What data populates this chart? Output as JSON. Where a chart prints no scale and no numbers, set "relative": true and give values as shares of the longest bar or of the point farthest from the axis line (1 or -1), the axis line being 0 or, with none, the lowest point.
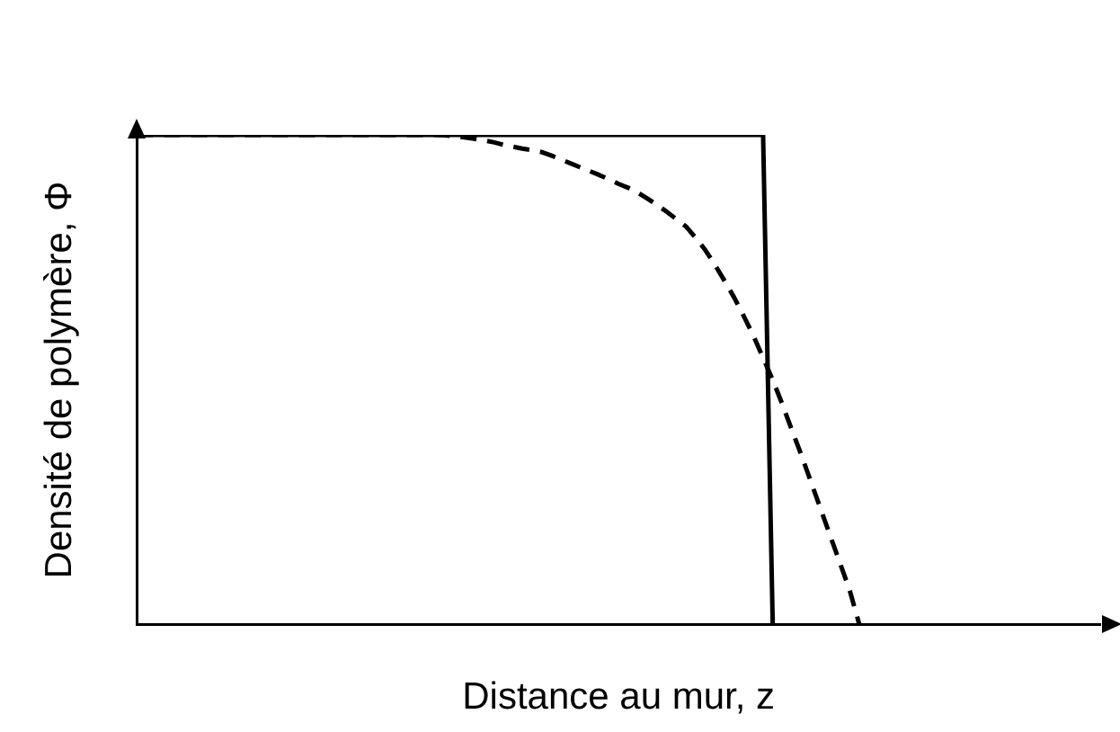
{
  "chart_data": {
    "type": "line",
    "xlabel": "Distance au mur, z",
    "ylabel": "Densité de polymère, Φ",
    "relative": true,
    "grid": false,
    "legend": false,
    "marker": "none",
    "categories": [
      null,
      null,
      null,
      null,
      null,
      null,
      null,
      null,
      null,
      null,
      null,
      null,
      null,
      null,
      null,
      null,
      null,
      null,
      null,
      null,
      null,
      null,
      null,
      null,
      null,
      null,
      null,
      null,
      null,
      null,
      null,
      null,
      null,
      null,
      null,
      null,
      null,
      null,
      null,
      null,
      null,
      null,
      null,
      null,
      null,
      null,
      null,
      null,
      null,
      null,
      null,
      null,
      null,
      null,
      null,
      null,
      null,
      null,
      null,
      null,
      null,
      null,
      null,
      null,
      null,
      null,
      null,
      null,
      null,
      null,
      null,
      null,
      null,
      null,
      null,
      null,
      null,
      null,
      null,
      null,
      null,
      null,
      null,
      null,
      null,
      null,
      null,
      null,
      null,
      null,
      null,
      null,
      null,
      null,
      null,
      null,
      null,
      null,
      null,
      null,
      null
    ],
    "series": [
      {
        "color": "#000000",
        "line_style": "solid",
        "values": [
          1,
          1,
          1,
          1,
          1,
          1,
          1,
          1,
          1,
          1,
          1,
          1,
          1,
          1,
          1,
          1,
          1,
          1,
          1,
          1,
          1,
          1,
          1,
          1,
          1,
          1,
          1,
          1,
          1,
          1,
          1,
          1,
          1,
          1,
          1,
          1,
          1,
          1,
          1,
          1,
          1,
          1,
          1,
          1,
          1,
          1,
          1,
          1,
          1,
          1,
          1,
          1,
          1,
          1,
          1,
          1,
          1,
          1,
          1,
          1,
          1,
          1,
          1,
          1,
          1,
          1,
          0,
          null,
          null,
          null,
          null,
          null,
          null,
          null,
          null,
          null,
          null,
          null,
          null,
          null,
          null,
          null,
          null,
          null,
          null,
          null,
          null,
          null,
          null,
          null,
          null,
          null,
          null,
          null,
          null,
          null,
          null,
          null,
          null,
          null,
          null
        ]
      },
      {
        "color": "#000000",
        "line_style": "dashed",
        "values": [
          1,
          1,
          1,
          1,
          1,
          1,
          1,
          1,
          1,
          1,
          1,
          1,
          1,
          1,
          1,
          1,
          1,
          1,
          1,
          1,
          1,
          1,
          1,
          1,
          1,
          1,
          1,
          1,
          1,
          1,
          1,
          1,
          0.999,
          0.997,
          0.995,
          0.992,
          0.989,
          0.985,
          0.98,
          0.976,
          0.972,
          0.969,
          0.965,
          0.958,
          0.95,
          0.942,
          0.934,
          0.926,
          0.918,
          0.909,
          0.9,
          0.892,
          0.882,
          0.87,
          0.857,
          0.843,
          0.828,
          0.813,
          0.79,
          0.765,
          0.735,
          0.702,
          0.668,
          0.63,
          0.59,
          0.545,
          0.5,
          0.45,
          0.397,
          0.345,
          0.29,
          0.235,
          0.18,
          0.125,
          0.07,
          0,
          null,
          null,
          null,
          null,
          null,
          null,
          null,
          null,
          null,
          null,
          null,
          null,
          null,
          null,
          null,
          null,
          null,
          null,
          null,
          null,
          null,
          null,
          null,
          null,
          null
        ]
      }
    ]
  }
}
